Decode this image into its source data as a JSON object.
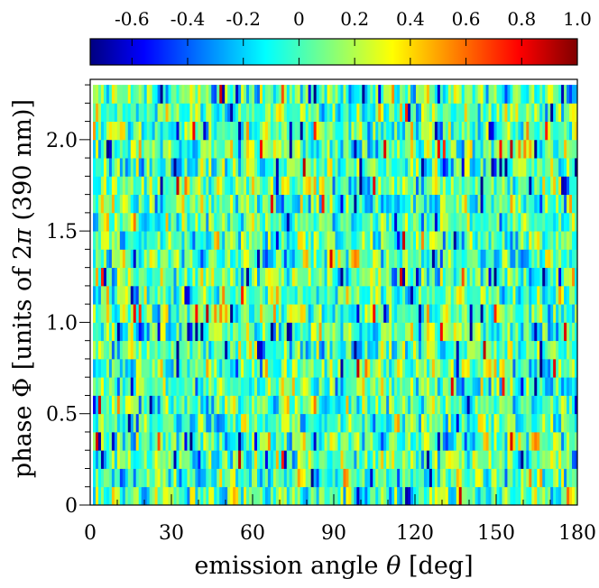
{
  "chart_data": {
    "type": "heatmap",
    "title": "",
    "xlabel_text": "emission angle",
    "xlabel_symbol": "θ",
    "xlabel_unit": "[deg]",
    "ylabel_text": "phase Φ [units of 2",
    "ylabel_symbol": "π",
    "ylabel_unit": " (390 nm)]",
    "xlim": [
      0,
      180
    ],
    "ylim": [
      0,
      2.33
    ],
    "x_ticks": [
      0,
      30,
      60,
      90,
      120,
      150,
      180
    ],
    "x_tick_labels": [
      "0",
      "30",
      "60",
      "90",
      "120",
      "150",
      "180"
    ],
    "y_ticks": [
      0,
      0.5,
      1.0,
      1.5,
      2.0
    ],
    "y_tick_labels": [
      "0",
      "0.5",
      "1.0",
      "1.5",
      "2.0"
    ],
    "colorbar": {
      "colormap": "jet",
      "range": [
        -0.75,
        1.0
      ],
      "ticks": [
        -0.6,
        -0.4,
        -0.2,
        0,
        0.2,
        0.4,
        0.6,
        0.8,
        1.0
      ],
      "tick_labels": [
        "-0.6",
        "-0.4",
        "-0.2",
        "0",
        "0.2",
        "0.4",
        "0.6",
        "0.8",
        "1.0"
      ],
      "location": "top"
    },
    "grid": {
      "n_theta_bins": 180,
      "n_phase_bins": 23,
      "theta_start": 1,
      "theta_end": 180,
      "phase_step": 0.1,
      "note": "noisy field of values mostly between -0.5 and 0.5 (cyan/green/yellow), occasional blue minima near -0.7 and red maxima near 0.9"
    },
    "colors": {
      "jet_stops": [
        "#000080",
        "#0000ff",
        "#00ffff",
        "#ffff00",
        "#ff0000",
        "#800000"
      ]
    }
  }
}
